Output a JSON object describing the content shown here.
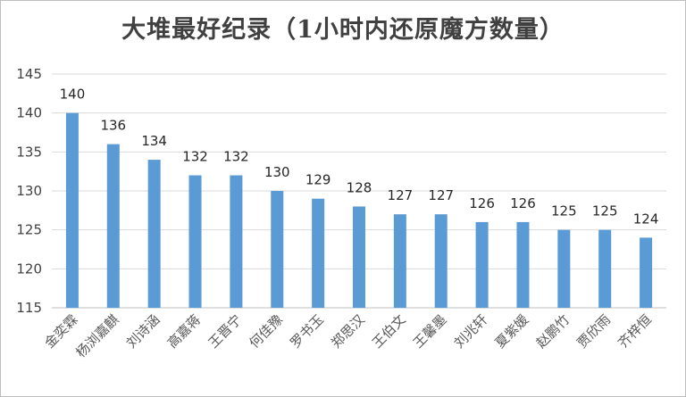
{
  "chart_data": {
    "type": "bar",
    "title": "大堆最好纪录（1小时内还原魔方数量）",
    "categories": [
      "金奕霖",
      "杨浏嘉麒",
      "刘诗涵",
      "高嘉蒋",
      "王晋宁",
      "何佳豫",
      "罗书玉",
      "郑思汉",
      "王伯文",
      "王馨墨",
      "刘兆轩",
      "夏紫媛",
      "赵鹏竹",
      "贾欣雨",
      "齐梓恒"
    ],
    "values": [
      140,
      136,
      134,
      132,
      132,
      130,
      129,
      128,
      127,
      127,
      126,
      126,
      125,
      125,
      124
    ],
    "ylim": [
      115,
      145
    ],
    "yticks": [
      115,
      120,
      125,
      130,
      135,
      140,
      145
    ],
    "grid": true,
    "legend": "none",
    "bar_color": "#5b9bd5"
  }
}
